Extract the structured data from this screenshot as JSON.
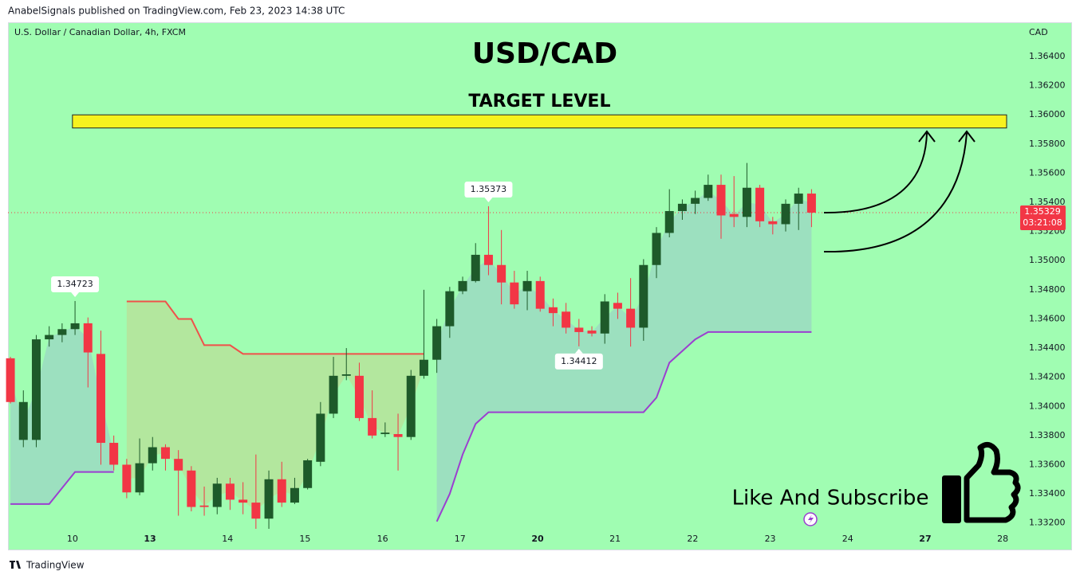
{
  "header": "AnabelSignals published on TradingView.com, Feb 23, 2023 14:38 UTC",
  "footer": "TradingView",
  "promo": "Like And Subscribe",
  "chart_data": {
    "type": "candlestick",
    "title": "USD/CAD",
    "symbol": "U.S. Dollar / Canadian Dollar, 4h, FXCM",
    "currency": "CAD",
    "countdown": "03:21:08",
    "up_color": "#1e5a2a",
    "down_color": "#f23645",
    "open": [
      1.3433,
      1.3377,
      1.3377,
      1.3446,
      1.3449,
      1.3453,
      1.3457,
      1.3436,
      1.3375,
      1.336,
      1.3341,
      1.3361,
      1.3372,
      1.3364,
      1.3356,
      1.3332,
      1.3331,
      1.3347,
      1.3336,
      1.3334,
      1.3323,
      1.335,
      1.3334,
      1.3344,
      1.3362,
      1.3395,
      1.3421,
      1.3421,
      1.3392,
      1.3381,
      1.3381,
      1.3379,
      1.3421,
      1.3432,
      1.3455,
      1.3479,
      1.3486,
      1.3504,
      1.3497,
      1.3485,
      1.3479,
      1.3486,
      1.3468,
      1.3465,
      1.3454,
      1.3452,
      1.345,
      1.3471,
      1.3467,
      1.3454,
      1.3497,
      1.3519,
      1.3534,
      1.3539,
      1.3543,
      1.3552,
      1.3532,
      1.353,
      1.355,
      1.3527,
      1.3525,
      1.3539,
      1.3546
    ],
    "high": [
      1.3434,
      1.3411,
      1.3449,
      1.3455,
      1.3457,
      1.34723,
      1.3461,
      1.3452,
      1.338,
      1.3364,
      1.3378,
      1.3379,
      1.3374,
      1.337,
      1.3359,
      1.3345,
      1.3351,
      1.3351,
      1.3348,
      1.3367,
      1.3356,
      1.3362,
      1.3351,
      1.3364,
      1.3403,
      1.3434,
      1.344,
      1.343,
      1.3411,
      1.3389,
      1.3395,
      1.3425,
      1.348,
      1.346,
      1.3482,
      1.3489,
      1.3512,
      1.35373,
      1.3521,
      1.3493,
      1.3493,
      1.3489,
      1.3474,
      1.3471,
      1.346,
      1.3455,
      1.3477,
      1.3478,
      1.3488,
      1.3501,
      1.3523,
      1.3549,
      1.3542,
      1.3548,
      1.3559,
      1.3559,
      1.3558,
      1.3567,
      1.3552,
      1.353,
      1.3542,
      1.355,
      1.3549
    ],
    "low": [
      1.3402,
      1.3372,
      1.3372,
      1.3441,
      1.3444,
      1.3449,
      1.3413,
      1.336,
      1.3356,
      1.3337,
      1.3339,
      1.3356,
      1.3356,
      1.3325,
      1.3328,
      1.3325,
      1.3326,
      1.3329,
      1.3326,
      1.3316,
      1.3316,
      1.3331,
      1.3333,
      1.3343,
      1.3359,
      1.3392,
      1.3418,
      1.339,
      1.3378,
      1.3379,
      1.3356,
      1.3377,
      1.3419,
      1.3423,
      1.3447,
      1.3477,
      1.3485,
      1.349,
      1.347,
      1.3467,
      1.3466,
      1.3465,
      1.3455,
      1.345,
      1.34412,
      1.3448,
      1.3443,
      1.346,
      1.3441,
      1.3445,
      1.3488,
      1.3516,
      1.3528,
      1.3532,
      1.3541,
      1.3515,
      1.3523,
      1.3523,
      1.3523,
      1.3518,
      1.352,
      1.3521,
      1.3523
    ],
    "close": [
      1.3403,
      1.3403,
      1.3446,
      1.3449,
      1.3453,
      1.3457,
      1.3437,
      1.3375,
      1.336,
      1.3341,
      1.3361,
      1.3372,
      1.3364,
      1.3356,
      1.3331,
      1.3331,
      1.3347,
      1.3336,
      1.3334,
      1.3323,
      1.335,
      1.3334,
      1.3344,
      1.3363,
      1.3395,
      1.3421,
      1.3422,
      1.3392,
      1.338,
      1.3382,
      1.3379,
      1.3421,
      1.3432,
      1.3455,
      1.3479,
      1.3486,
      1.3504,
      1.3497,
      1.3485,
      1.347,
      1.3486,
      1.3467,
      1.3464,
      1.3454,
      1.3451,
      1.345,
      1.3472,
      1.3467,
      1.3454,
      1.3497,
      1.3519,
      1.3534,
      1.3539,
      1.3543,
      1.3552,
      1.3531,
      1.353,
      1.355,
      1.3527,
      1.3525,
      1.3539,
      1.3546,
      1.35329
    ],
    "indicator_lines": [
      {
        "color": "#9b3fd0",
        "fill": "rgba(150,170,215,0.35)",
        "values": [
          1.3333,
          1.3333,
          1.3333,
          1.3333,
          1.3344,
          1.3355,
          1.3355,
          1.3355,
          1.3355,
          null,
          null,
          null,
          null,
          null,
          null,
          null,
          null,
          null,
          null,
          null,
          null,
          null,
          null,
          null,
          null,
          null,
          null,
          null,
          null,
          null,
          null,
          null,
          null,
          1.3321,
          1.334,
          1.3367,
          1.3388,
          1.3396,
          1.3396,
          1.3396,
          1.3396,
          1.3396,
          1.3396,
          1.3396,
          1.3396,
          1.3396,
          1.3396,
          1.3396,
          1.3396,
          1.3396,
          1.3406,
          1.343,
          1.3438,
          1.3446,
          1.3451,
          1.3451,
          1.3451,
          1.3451,
          1.3451,
          1.3451,
          1.3451,
          1.3451,
          1.3451
        ]
      },
      {
        "color": "#f0504a",
        "fill": "rgba(215,190,120,0.35)",
        "values": [
          null,
          null,
          null,
          null,
          null,
          null,
          null,
          null,
          null,
          1.3472,
          1.3472,
          1.3472,
          1.3472,
          1.346,
          1.346,
          1.3442,
          1.3442,
          1.3442,
          1.3436,
          1.3436,
          1.3436,
          1.3436,
          1.3436,
          1.3436,
          1.3436,
          1.3436,
          1.3436,
          1.3436,
          1.3436,
          1.3436,
          1.3436,
          1.3436,
          1.3436,
          null,
          null,
          null,
          null,
          null,
          null,
          null,
          null,
          null,
          null,
          null,
          null,
          null,
          null,
          null,
          null,
          null,
          null,
          null,
          null,
          null,
          null,
          null,
          null,
          null,
          null,
          null,
          null,
          null,
          null
        ]
      }
    ],
    "target_zone": {
      "label": "TARGET LEVEL",
      "ylim": [
        1.3591,
        1.36
      ],
      "xlim": [
        4.8,
        77.1
      ],
      "color": "#f7f21e"
    },
    "xlim": [
      -0.19,
      82.1
    ],
    "xticks": [
      {
        "value": 4.8,
        "label": "10"
      },
      {
        "value": 10.8,
        "label": "13",
        "bold": true
      },
      {
        "value": 16.8,
        "label": "14"
      },
      {
        "value": 22.8,
        "label": "15"
      },
      {
        "value": 28.8,
        "label": "16"
      },
      {
        "value": 34.8,
        "label": "17"
      },
      {
        "value": 40.8,
        "label": "20",
        "bold": true
      },
      {
        "value": 46.8,
        "label": "21"
      },
      {
        "value": 52.8,
        "label": "22"
      },
      {
        "value": 58.8,
        "label": "23"
      },
      {
        "value": 64.8,
        "label": "24"
      },
      {
        "value": 70.8,
        "label": "27",
        "bold": true
      },
      {
        "value": 76.8,
        "label": "28"
      }
    ],
    "ylim": [
      1.33018,
      1.36635
    ],
    "yticks": [
      {
        "value": 1.332,
        "label": "1.33200"
      },
      {
        "value": 1.334,
        "label": "1.33400"
      },
      {
        "value": 1.336,
        "label": "1.33600"
      },
      {
        "value": 1.338,
        "label": "1.33800"
      },
      {
        "value": 1.34,
        "label": "1.34000"
      },
      {
        "value": 1.342,
        "label": "1.34200"
      },
      {
        "value": 1.344,
        "label": "1.34400"
      },
      {
        "value": 1.346,
        "label": "1.34600"
      },
      {
        "value": 1.348,
        "label": "1.34800"
      },
      {
        "value": 1.35,
        "label": "1.35000"
      },
      {
        "value": 1.352,
        "label": "1.35200"
      },
      {
        "value": 1.354,
        "label": "1.35400"
      },
      {
        "value": 1.356,
        "label": "1.35600"
      },
      {
        "value": 1.358,
        "label": "1.35800"
      },
      {
        "value": 1.36,
        "label": "1.36000"
      },
      {
        "value": 1.362,
        "label": "1.36200"
      },
      {
        "value": 1.364,
        "label": "1.36400"
      }
    ]
  }
}
